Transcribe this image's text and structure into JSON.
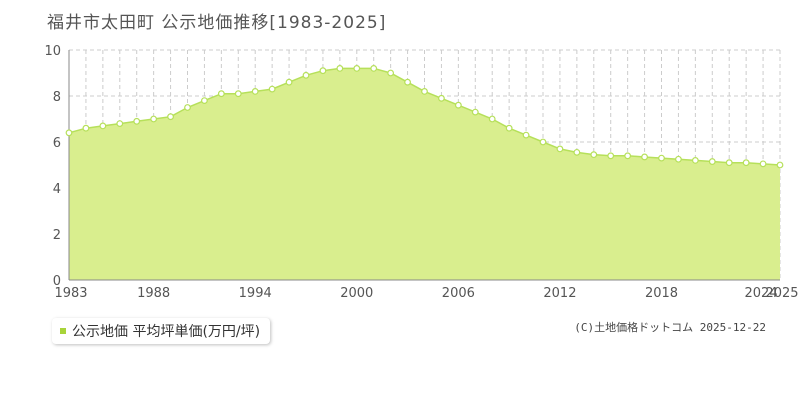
{
  "title": "福井市太田町 公示地価推移[1983-2025]",
  "legend": {
    "label": "公示地価 平均坪単価(万円/坪)"
  },
  "copyright": "(C)土地価格ドットコム 2025-12-22",
  "colors": {
    "fill": "#d9ee8e",
    "line": "#b6e05a",
    "marker_fill": "#ffffff",
    "legend_marker": "#a8d43a",
    "grid": "#cccccc",
    "axis": "#888888"
  },
  "chart_data": {
    "type": "area",
    "title": "福井市太田町 公示地価推移[1983-2025]",
    "xlabel": "",
    "ylabel": "",
    "xlim": [
      1983,
      2025
    ],
    "ylim": [
      0,
      10
    ],
    "grid": true,
    "legend_position": "bottom-left",
    "x_ticks": [
      "1983",
      "1988",
      "1994",
      "2000",
      "2006",
      "2012",
      "2018",
      "2024",
      "2025"
    ],
    "y_ticks": [
      "0",
      "2",
      "4",
      "6",
      "8",
      "10"
    ],
    "series": [
      {
        "name": "公示地価 平均坪単価(万円/坪)",
        "x": [
          1983,
          1984,
          1985,
          1986,
          1987,
          1988,
          1989,
          1990,
          1991,
          1992,
          1993,
          1994,
          1995,
          1996,
          1997,
          1998,
          1999,
          2000,
          2001,
          2002,
          2003,
          2004,
          2005,
          2006,
          2007,
          2008,
          2009,
          2010,
          2011,
          2012,
          2013,
          2014,
          2015,
          2016,
          2017,
          2018,
          2019,
          2020,
          2021,
          2022,
          2023,
          2024,
          2025
        ],
        "values": [
          6.4,
          6.6,
          6.7,
          6.8,
          6.9,
          7.0,
          7.1,
          7.5,
          7.8,
          8.1,
          8.1,
          8.2,
          8.3,
          8.6,
          8.9,
          9.1,
          9.2,
          9.2,
          9.2,
          9.0,
          8.6,
          8.2,
          7.9,
          7.6,
          7.3,
          7.0,
          6.6,
          6.3,
          6.0,
          5.7,
          5.55,
          5.45,
          5.4,
          5.4,
          5.35,
          5.3,
          5.25,
          5.2,
          5.15,
          5.1,
          5.1,
          5.05,
          5.0
        ]
      }
    ]
  }
}
